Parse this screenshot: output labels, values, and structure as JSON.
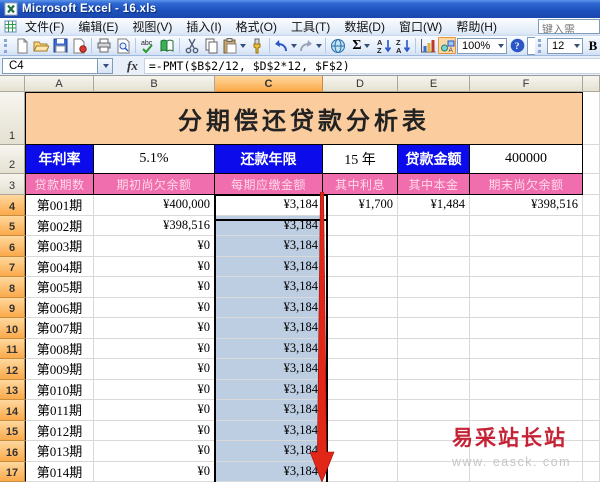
{
  "window": {
    "title": "Microsoft Excel - 16.xls",
    "help_box": "键入需"
  },
  "menus": [
    "文件(F)",
    "编辑(E)",
    "视图(V)",
    "插入(I)",
    "格式(O)",
    "工具(T)",
    "数据(D)",
    "窗口(W)",
    "帮助(H)"
  ],
  "toolbar": {
    "zoom_value": "100%",
    "font_size": "12",
    "bold_label": "B",
    "autosum_label": "Σ",
    "icons": [
      "new-document",
      "open",
      "save",
      "permission",
      "print",
      "print-preview",
      "spelling",
      "research",
      "cut",
      "copy",
      "paste",
      "format-painter",
      "undo",
      "redo",
      "insert-hyperlink",
      "autosum",
      "sort-ascending",
      "sort-descending",
      "chart-wizard",
      "drawing",
      "zoom",
      "help",
      "font-size",
      "bold"
    ]
  },
  "formula_bar": {
    "cell_ref": "C4",
    "fx_label": "fx",
    "formula": "=-PMT($B$2/12, $D$2*12, $F$2)"
  },
  "colors": {
    "title_bg": "#facc9e",
    "label_blue": "#0b0beb",
    "header_pink": "#f06eae",
    "header_pink_text": "#ffd9e9",
    "selection_fill": "#bdcee3",
    "selected_header": "#fbb65a",
    "arrow_red": "#e02718",
    "watermark_red": "#c52236"
  },
  "sheet": {
    "column_headers": [
      "A",
      "B",
      "C",
      "D",
      "E",
      "F"
    ],
    "visible_row_numbers": [
      "1",
      "2",
      "3",
      "4",
      "5",
      "6",
      "7",
      "8",
      "9",
      "10",
      "11",
      "12",
      "13",
      "14",
      "15",
      "16",
      "17"
    ],
    "title_row": {
      "text": "分期偿还贷款分析表"
    },
    "row2": [
      {
        "label": "年利率",
        "kind": "label"
      },
      {
        "label": "5.1%",
        "kind": "value"
      },
      {
        "label": "还款年限",
        "kind": "label"
      },
      {
        "label": "15 年",
        "kind": "value"
      },
      {
        "label": "贷款金额",
        "kind": "label"
      },
      {
        "label": "400000",
        "kind": "value"
      }
    ],
    "row3_headers": [
      "贷款期数",
      "期初尚欠余额",
      "每期应缴金额",
      "其中利息",
      "其中本金",
      "期末尚欠余额"
    ],
    "data_rows": [
      [
        "第001期",
        "¥400,000",
        "¥3,184",
        "¥1,700",
        "¥1,484",
        "¥398,516"
      ],
      [
        "第002期",
        "¥398,516",
        "¥3,184",
        "",
        "",
        ""
      ],
      [
        "第003期",
        "¥0",
        "¥3,184",
        "",
        "",
        ""
      ],
      [
        "第004期",
        "¥0",
        "¥3,184",
        "",
        "",
        ""
      ],
      [
        "第005期",
        "¥0",
        "¥3,184",
        "",
        "",
        ""
      ],
      [
        "第006期",
        "¥0",
        "¥3,184",
        "",
        "",
        ""
      ],
      [
        "第007期",
        "¥0",
        "¥3,184",
        "",
        "",
        ""
      ],
      [
        "第008期",
        "¥0",
        "¥3,184",
        "",
        "",
        ""
      ],
      [
        "第009期",
        "¥0",
        "¥3,184",
        "",
        "",
        ""
      ],
      [
        "第010期",
        "¥0",
        "¥3,184",
        "",
        "",
        ""
      ],
      [
        "第011期",
        "¥0",
        "¥3,184",
        "",
        "",
        ""
      ],
      [
        "第012期",
        "¥0",
        "¥3,184",
        "",
        "",
        ""
      ],
      [
        "第013期",
        "¥0",
        "¥3,184",
        "",
        "",
        ""
      ],
      [
        "第014期",
        "¥0",
        "¥3,184",
        "",
        "",
        ""
      ]
    ]
  },
  "watermark": {
    "line1": "易采站长站",
    "line2": "www. easck. com"
  }
}
